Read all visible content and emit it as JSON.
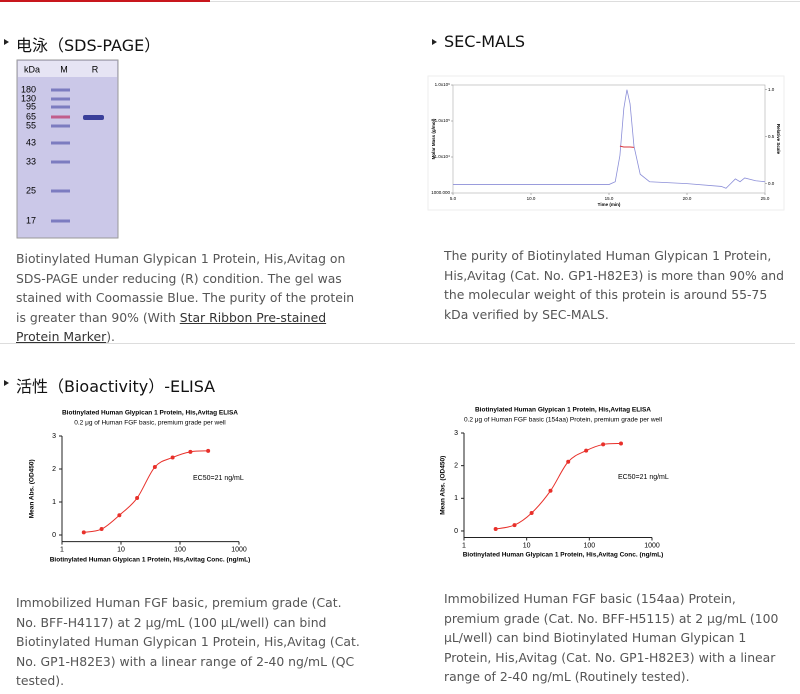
{
  "sds_page": {
    "heading": "电泳（SDS-PAGE）",
    "gel": {
      "unit": "kDa",
      "lanes": [
        "M",
        "R"
      ],
      "markers": [
        180,
        130,
        95,
        65,
        55,
        43,
        33,
        25,
        17
      ]
    },
    "text_before": "Biotinylated Human Glypican 1 Protein, His,Avitag on SDS-PAGE under reducing (R) condition. The gel was stained with Coomassie Blue. The purity of the protein is greater than 90% (With ",
    "link": "Star Ribbon Pre-stained Protein Marker",
    "text_after": ")."
  },
  "sec_mals": {
    "heading": "SEC-MALS",
    "text": "The purity of Biotinylated Human Glypican 1 Protein, His,Avitag (Cat. No. GP1-H82E3) is more than 90% and the molecular weight of this protein is around 55-75 kDa verified by SEC-MALS."
  },
  "bioactivity": {
    "heading": "活性（Bioactivity）-ELISA",
    "texts": [
      "Immobilized Human FGF basic, premium grade (Cat. No. BFF-H4117) at 2 μg/mL (100 μL/well) can bind Biotinylated Human Glypican 1 Protein, His,Avitag (Cat. No. GP1-H82E3) with a linear range of 2-40 ng/mL (QC tested).",
      "Immobilized Human FGF basic (154aa) Protein, premium grade (Cat. No. BFF-H5115) at 2 μg/mL (100 μL/well) can bind Biotinylated Human Glypican 1 Protein, His,Avitag (Cat. No. GP1-H82E3) with a linear range of 2-40 ng/mL (Routinely tested)."
    ]
  },
  "chart_data": [
    {
      "type": "line",
      "x_label": "Time (min)",
      "y_label": "Molar Mass (g/mol)",
      "y2_label": "Relative Scale",
      "x": [
        5,
        10,
        15,
        15.4,
        15.7,
        15.95,
        16.15,
        16.35,
        16.6,
        17,
        17.6,
        20,
        22.2,
        22.5,
        22.8,
        23.1,
        23.4,
        23.7,
        24.4,
        25
      ],
      "xlim": [
        5,
        25
      ],
      "xticks": [
        {
          "value": 5,
          "label": "5.0"
        },
        {
          "value": 10,
          "label": "10.0"
        },
        {
          "value": 15,
          "label": "15.0"
        },
        {
          "value": 20,
          "label": "20.0"
        },
        {
          "value": 25,
          "label": "25.0"
        }
      ],
      "ylim": [
        1000,
        1000000
      ],
      "log_y": true,
      "yticks": [
        {
          "value": 1000,
          "label": "1000.000"
        },
        {
          "value": 10000,
          "label": "1.0x10⁴"
        },
        {
          "value": 100000,
          "label": "1.0x10⁵"
        },
        {
          "value": 1000000,
          "label": "1.0x10⁶"
        }
      ],
      "y2lim": [
        -0.1,
        1.05
      ],
      "y2ticks": [
        {
          "value": 0,
          "label": "0.0"
        },
        {
          "value": 0.5,
          "label": "0.5"
        },
        {
          "value": 1,
          "label": "1.0"
        }
      ],
      "series": [
        {
          "color": "#8c8fd8",
          "axis": "y2",
          "values": [
            -0.01,
            -0.01,
            -0.01,
            0.02,
            0.3,
            0.8,
            1.0,
            0.85,
            0.4,
            0.1,
            0.02,
            0.0,
            -0.03,
            -0.05,
            0.0,
            0.05,
            0.02,
            0.06,
            0.03,
            0.02
          ]
        },
        {
          "color": "#d9363e",
          "values": [
            null,
            null,
            null,
            null,
            20000,
            19000,
            19000,
            19000,
            18500,
            null,
            null,
            null,
            null,
            null,
            null,
            null,
            null,
            null,
            null,
            null
          ]
        }
      ]
    },
    {
      "type": "scatter",
      "title": "Biotinylated Human Glypican 1 Protein, His,Avitag ELISA",
      "subtitle": "0.2 μg of Human FGF basic, premium grade per well",
      "x_label": "Biotinylated Human Glypican 1 Protein, His,Avitag Conc. (ng/mL)",
      "y_label": "Mean Abs. (OD450)",
      "annotation": "EC50=21 ng/mL",
      "log_x": true,
      "xlim": [
        1,
        1000
      ],
      "xticks": [
        1,
        10,
        100,
        1000
      ],
      "ylim": [
        -0.2,
        3
      ],
      "yticks": [
        0,
        1,
        2,
        3
      ],
      "color": "#e8302a",
      "x": [
        2.34,
        4.69,
        9.38,
        18.75,
        37.5,
        75,
        150,
        300
      ],
      "values": [
        0.08,
        0.18,
        0.6,
        1.12,
        2.06,
        2.35,
        2.52,
        2.55
      ]
    },
    {
      "type": "scatter",
      "title": "Biotinylated Human Glypican 1 Protein, His,Avitag ELISA",
      "subtitle": "0.2 μg of Human FGF basic (154aa) Protein, premium grade per well",
      "x_label": "Biotinylated Human Glypican 1 Protein, His,Avitag Conc. (ng/mL)",
      "y_label": "Mean Abs. (OD450)",
      "annotation": "EC50=21 ng/mL",
      "log_x": true,
      "xlim": [
        1,
        1000
      ],
      "xticks": [
        1,
        10,
        100,
        1000
      ],
      "ylim": [
        -0.2,
        3
      ],
      "yticks": [
        0,
        1,
        2,
        3
      ],
      "color": "#e8302a",
      "x": [
        3.2,
        6.4,
        12,
        24,
        46,
        89,
        166,
        320
      ],
      "values": [
        0.06,
        0.18,
        0.55,
        1.23,
        2.12,
        2.46,
        2.65,
        2.68
      ]
    }
  ]
}
